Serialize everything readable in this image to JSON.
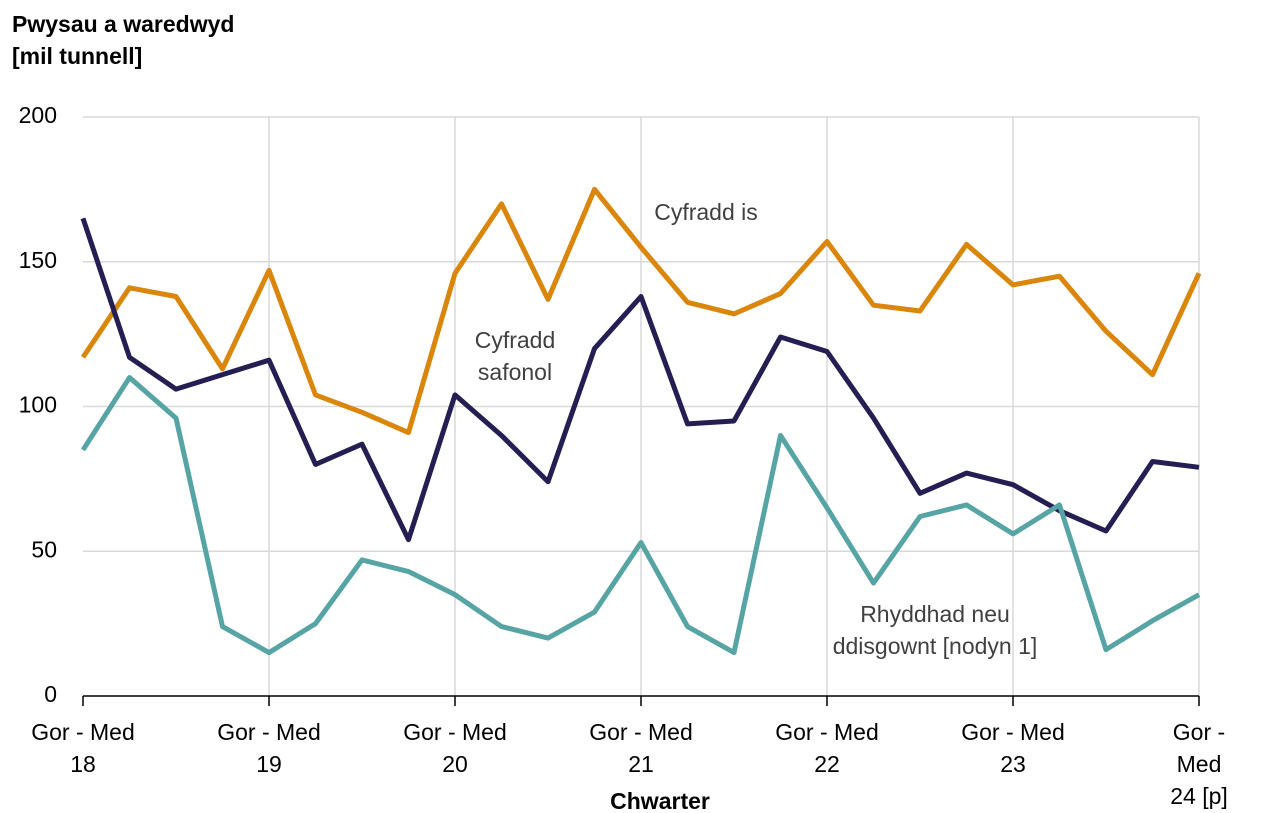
{
  "chart_data": {
    "type": "line",
    "y_axis_title": "Pwysau a waredwyd\n[mil tunnell]",
    "x_axis_title": "Chwarter",
    "categories": [
      "Gor - Med\n18",
      null,
      null,
      null,
      "Gor - Med\n19",
      null,
      null,
      null,
      "Gor - Med\n20",
      null,
      null,
      null,
      "Gor - Med\n21",
      null,
      null,
      null,
      "Gor - Med\n22",
      null,
      null,
      null,
      "Gor - Med\n23",
      null,
      null,
      null,
      "Gor - Med\n24 [p]"
    ],
    "series": [
      {
        "name": "Cyfradd is",
        "color": "#d9860b",
        "values": [
          117,
          141,
          138,
          113,
          147,
          104,
          98,
          91,
          146,
          170,
          137,
          175,
          155,
          136,
          132,
          139,
          157,
          135,
          133,
          156,
          142,
          145,
          126,
          111,
          146
        ]
      },
      {
        "name": "Cyfradd\nsafonol",
        "color": "#241e52",
        "values": [
          165,
          117,
          106,
          111,
          116,
          80,
          87,
          54,
          104,
          90,
          74,
          120,
          138,
          94,
          95,
          124,
          119,
          96,
          70,
          77,
          73,
          64,
          57,
          81,
          79
        ]
      },
      {
        "name": "Rhyddhad neu\nddisgownt [nodyn 1]",
        "color": "#56a4a4",
        "values": [
          85,
          110,
          96,
          24,
          15,
          25,
          47,
          43,
          35,
          24,
          20,
          29,
          53,
          24,
          15,
          90,
          65,
          39,
          62,
          66,
          56,
          66,
          16,
          26,
          35
        ]
      }
    ],
    "ylim": [
      0,
      200
    ],
    "yticks": [
      0,
      50,
      100,
      150,
      200
    ],
    "grid": true
  }
}
